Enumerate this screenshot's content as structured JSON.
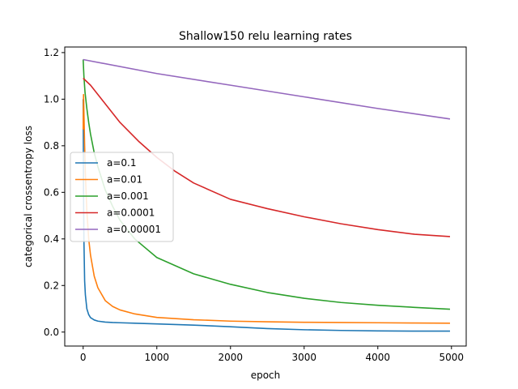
{
  "chart_data": {
    "type": "line",
    "title": "Shallow150 relu learning rates",
    "xlabel": "epoch",
    "ylabel": "categorical crossentropy loss",
    "xlim": [
      -250,
      5200
    ],
    "ylim": [
      -0.06,
      1.224
    ],
    "xticks": [
      0,
      1000,
      2000,
      3000,
      4000,
      5000
    ],
    "yticks": [
      0.0,
      0.2,
      0.4,
      0.6,
      0.8,
      1.0,
      1.2
    ],
    "grid": false,
    "legend_position": "center-left",
    "series": [
      {
        "name": "a=0.1",
        "color": "#1f77b4",
        "x": [
          0,
          5,
          10,
          20,
          30,
          50,
          75,
          100,
          150,
          200,
          300,
          400,
          500,
          700,
          1000,
          1500,
          2000,
          2500,
          3000,
          3500,
          4000,
          4500,
          4980
        ],
        "y": [
          1.0,
          0.6,
          0.4,
          0.22,
          0.16,
          0.1,
          0.075,
          0.062,
          0.052,
          0.047,
          0.043,
          0.041,
          0.04,
          0.038,
          0.035,
          0.03,
          0.023,
          0.015,
          0.01,
          0.007,
          0.005,
          0.004,
          0.004
        ]
      },
      {
        "name": "a=0.01",
        "color": "#ff7f0e",
        "x": [
          0,
          5,
          10,
          20,
          30,
          50,
          75,
          100,
          150,
          200,
          300,
          400,
          500,
          700,
          1000,
          1500,
          2000,
          2500,
          3000,
          3500,
          4000,
          4500,
          4980
        ],
        "y": [
          0.87,
          1.02,
          0.95,
          0.8,
          0.68,
          0.52,
          0.4,
          0.33,
          0.24,
          0.19,
          0.135,
          0.11,
          0.095,
          0.078,
          0.063,
          0.053,
          0.047,
          0.044,
          0.042,
          0.041,
          0.04,
          0.039,
          0.038
        ]
      },
      {
        "name": "a=0.001",
        "color": "#2ca02c",
        "x": [
          0,
          10,
          25,
          50,
          75,
          100,
          150,
          200,
          300,
          400,
          500,
          700,
          1000,
          1500,
          2000,
          2500,
          3000,
          3500,
          4000,
          4500,
          4980
        ],
        "y": [
          1.17,
          1.1,
          1.03,
          0.96,
          0.9,
          0.85,
          0.77,
          0.71,
          0.61,
          0.54,
          0.48,
          0.4,
          0.32,
          0.25,
          0.205,
          0.17,
          0.145,
          0.127,
          0.115,
          0.106,
          0.098
        ]
      },
      {
        "name": "a=0.0001",
        "color": "#d62728",
        "x": [
          0,
          100,
          250,
          500,
          750,
          1000,
          1250,
          1500,
          2000,
          2500,
          3000,
          3500,
          4000,
          4500,
          4980
        ],
        "y": [
          1.09,
          1.06,
          1.0,
          0.9,
          0.82,
          0.75,
          0.69,
          0.64,
          0.57,
          0.53,
          0.495,
          0.465,
          0.44,
          0.42,
          0.41
        ]
      },
      {
        "name": "a=0.00001",
        "color": "#9467bd",
        "x": [
          0,
          1000,
          2000,
          3000,
          4000,
          4980
        ],
        "y": [
          1.17,
          1.11,
          1.06,
          1.01,
          0.96,
          0.915
        ]
      }
    ]
  }
}
